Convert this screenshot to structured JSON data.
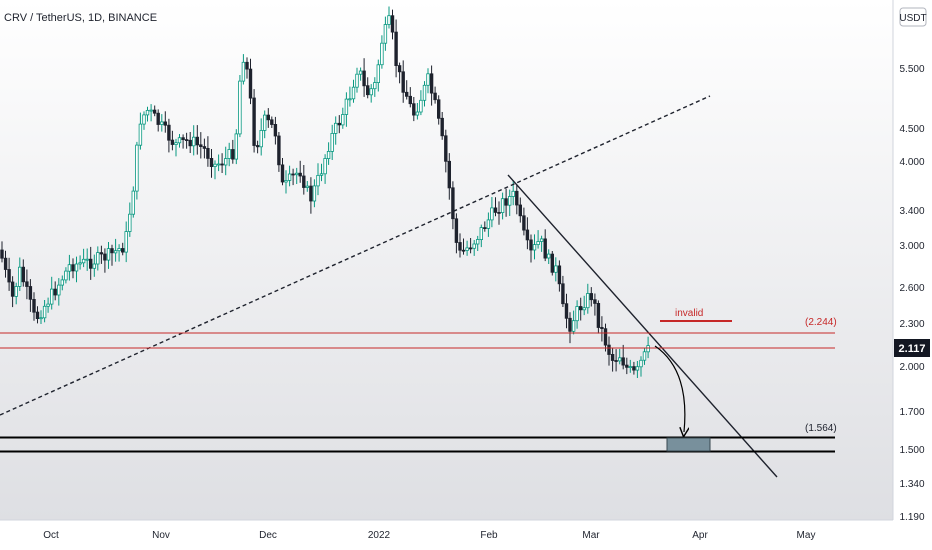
{
  "chart_data": {
    "type": "candlestick",
    "title": "CRV / TetherUS, 1D, BINANCE",
    "currency": "USDT",
    "log_scale": true,
    "y_ticks": [
      "5.500",
      "4.500",
      "4.000",
      "3.400",
      "3.000",
      "2.600",
      "2.300",
      "2.000",
      "1.700",
      "1.500",
      "1.340",
      "1.190"
    ],
    "x_ticks": [
      "Oct",
      "Nov",
      "Dec",
      "2022",
      "Feb",
      "Mar",
      "Apr",
      "May"
    ],
    "last_price": "2.117",
    "annotations": {
      "invalid_label": "invalid",
      "upper_level_label": "(2.244)",
      "lower_level_label": "(1.564)"
    },
    "colors": {
      "up": "#089981",
      "down": "#1e222d",
      "red_lines": "#c62828",
      "target_box": "#78909c"
    }
  }
}
